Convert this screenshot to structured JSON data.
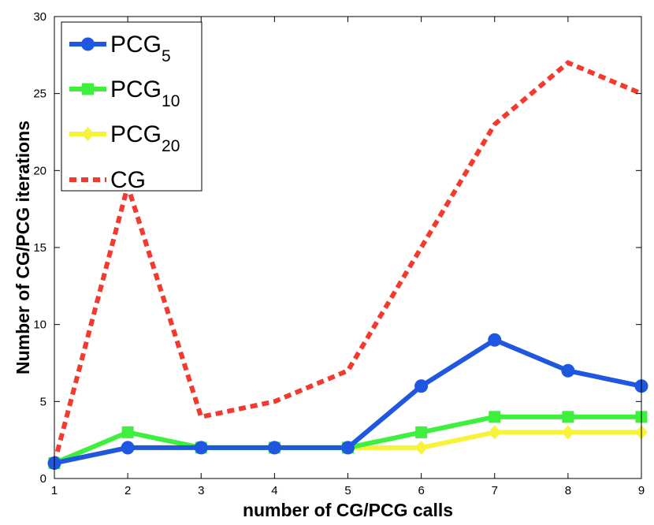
{
  "chart_data": {
    "type": "line",
    "title": "",
    "xlabel": "number of CG/PCG calls",
    "ylabel": "Number of CG/PCG iterations",
    "xlim": [
      1,
      9
    ],
    "ylim": [
      0,
      30
    ],
    "xticks": [
      1,
      2,
      3,
      4,
      5,
      6,
      7,
      8,
      9
    ],
    "yticks": [
      0,
      5,
      10,
      15,
      20,
      25,
      30
    ],
    "grid": false,
    "legend_position": "top-left",
    "x": [
      1,
      2,
      3,
      4,
      5,
      6,
      7,
      8,
      9
    ],
    "series": [
      {
        "name": "PCG5",
        "label_main": "PCG",
        "label_sub": "5",
        "color": "#1f57e0",
        "marker": "circle",
        "style": "solid",
        "values": [
          1,
          2,
          2,
          2,
          2,
          6,
          9,
          7,
          6
        ]
      },
      {
        "name": "PCG10",
        "label_main": "PCG",
        "label_sub": "10",
        "color": "#3ef03e",
        "marker": "square",
        "style": "solid",
        "values": [
          1,
          3,
          2,
          2,
          2,
          3,
          4,
          4,
          4
        ]
      },
      {
        "name": "PCG20",
        "label_main": "PCG",
        "label_sub": "20",
        "color": "#f7f23a",
        "marker": "diamond",
        "style": "solid",
        "values": [
          1,
          2,
          2,
          2,
          2,
          2,
          3,
          3,
          3
        ]
      },
      {
        "name": "CG",
        "label_main": "CG",
        "label_sub": "",
        "color": "#f23a2e",
        "marker": "none",
        "style": "dotted",
        "values": [
          1,
          19,
          4,
          5,
          7,
          15,
          23,
          27,
          25
        ]
      }
    ]
  }
}
